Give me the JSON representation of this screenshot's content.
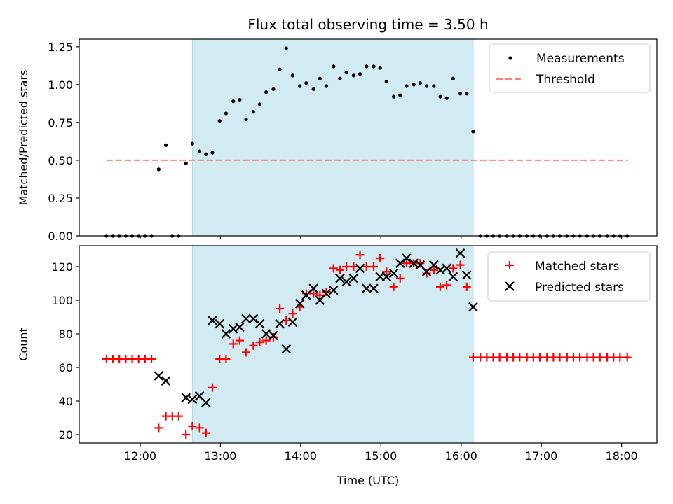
{
  "chart_data": {
    "type": "scatter",
    "title": "Flux total observing time = 3.50 h",
    "xlabel": "Time (UTC)",
    "x_ticks": [
      "12:00",
      "13:00",
      "14:00",
      "15:00",
      "16:00",
      "17:00",
      "18:00"
    ],
    "x_tick_hours": [
      12,
      13,
      14,
      15,
      16,
      17,
      18
    ],
    "xlim_hours": [
      11.24,
      18.44
    ],
    "observing_window_hours": [
      12.65,
      16.15
    ],
    "shade_color": "#add8e6",
    "panels": [
      {
        "ylabel": "Matched/Predicted stars",
        "ylim": [
          0,
          1.3
        ],
        "y_ticks": [
          0.0,
          0.25,
          0.5,
          0.75,
          1.0,
          1.25
        ],
        "y_tick_labels": [
          "0.00",
          "0.25",
          "0.50",
          "0.75",
          "1.00",
          "1.25"
        ],
        "legend": {
          "position": "top-right",
          "entries": [
            "Measurements",
            "Threshold"
          ]
        },
        "threshold": {
          "name": "Threshold",
          "y": 0.5,
          "x_range": [
            11.58,
            18.08
          ],
          "color": "#ff7f7f"
        },
        "series": [
          {
            "name": "Measurements",
            "marker": "dot",
            "color": "#000000",
            "points": [
              [
                11.58,
                0
              ],
              [
                11.66,
                0
              ],
              [
                11.74,
                0
              ],
              [
                11.82,
                0
              ],
              [
                11.9,
                0
              ],
              [
                11.98,
                0
              ],
              [
                12.06,
                0
              ],
              [
                12.14,
                0
              ],
              [
                12.23,
                0.44
              ],
              [
                12.32,
                0.6
              ],
              [
                12.4,
                0
              ],
              [
                12.48,
                0
              ],
              [
                12.57,
                0.48
              ],
              [
                12.65,
                0.61
              ],
              [
                12.74,
                0.56
              ],
              [
                12.82,
                0.54
              ],
              [
                12.9,
                0.55
              ],
              [
                12.99,
                0.76
              ],
              [
                13.07,
                0.81
              ],
              [
                13.16,
                0.89
              ],
              [
                13.24,
                0.9
              ],
              [
                13.32,
                0.77
              ],
              [
                13.41,
                0.82
              ],
              [
                13.49,
                0.87
              ],
              [
                13.57,
                0.95
              ],
              [
                13.66,
                0.97
              ],
              [
                13.74,
                1.1
              ],
              [
                13.82,
                1.24
              ],
              [
                13.9,
                1.06
              ],
              [
                13.99,
                0.99
              ],
              [
                14.07,
                1.01
              ],
              [
                14.16,
                0.97
              ],
              [
                14.24,
                1.04
              ],
              [
                14.32,
                0.99
              ],
              [
                14.41,
                1.12
              ],
              [
                14.49,
                1.04
              ],
              [
                14.57,
                1.08
              ],
              [
                14.66,
                1.06
              ],
              [
                14.74,
                1.07
              ],
              [
                14.82,
                1.12
              ],
              [
                14.91,
                1.12
              ],
              [
                14.99,
                1.11
              ],
              [
                15.07,
                1.02
              ],
              [
                15.16,
                0.92
              ],
              [
                15.24,
                0.93
              ],
              [
                15.32,
                0.99
              ],
              [
                15.41,
                1.0
              ],
              [
                15.49,
                1.01
              ],
              [
                15.57,
                0.99
              ],
              [
                15.66,
                0.99
              ],
              [
                15.74,
                0.92
              ],
              [
                15.82,
                0.91
              ],
              [
                15.9,
                1.04
              ],
              [
                15.99,
                0.94
              ],
              [
                16.07,
                0.94
              ],
              [
                16.15,
                0.69
              ],
              [
                16.24,
                0
              ],
              [
                16.32,
                0
              ],
              [
                16.4,
                0
              ],
              [
                16.48,
                0
              ],
              [
                16.57,
                0
              ],
              [
                16.65,
                0
              ],
              [
                16.73,
                0
              ],
              [
                16.82,
                0
              ],
              [
                16.9,
                0
              ],
              [
                16.98,
                0
              ],
              [
                17.07,
                0
              ],
              [
                17.15,
                0
              ],
              [
                17.23,
                0
              ],
              [
                17.32,
                0
              ],
              [
                17.4,
                0
              ],
              [
                17.48,
                0
              ],
              [
                17.57,
                0
              ],
              [
                17.65,
                0
              ],
              [
                17.73,
                0
              ],
              [
                17.82,
                0
              ],
              [
                17.9,
                0
              ],
              [
                17.98,
                0
              ],
              [
                18.07,
                0
              ]
            ]
          }
        ]
      },
      {
        "ylabel": "Count",
        "ylim": [
          15,
          132.5
        ],
        "y_ticks": [
          20,
          40,
          60,
          80,
          100,
          120
        ],
        "y_tick_labels": [
          "20",
          "40",
          "60",
          "80",
          "100",
          "120"
        ],
        "legend": {
          "position": "top-right",
          "entries": [
            "Matched stars",
            "Predicted stars"
          ]
        },
        "series": [
          {
            "name": "Matched stars",
            "marker": "plus",
            "color": "#ff0000",
            "points": [
              [
                11.58,
                65
              ],
              [
                11.66,
                65
              ],
              [
                11.74,
                65
              ],
              [
                11.82,
                65
              ],
              [
                11.9,
                65
              ],
              [
                11.98,
                65
              ],
              [
                12.06,
                65
              ],
              [
                12.14,
                65
              ],
              [
                12.23,
                24
              ],
              [
                12.32,
                31
              ],
              [
                12.4,
                31
              ],
              [
                12.48,
                31
              ],
              [
                12.57,
                20
              ],
              [
                12.65,
                25
              ],
              [
                12.74,
                24
              ],
              [
                12.82,
                21
              ],
              [
                12.9,
                48
              ],
              [
                12.99,
                65
              ],
              [
                13.07,
                65
              ],
              [
                13.16,
                74
              ],
              [
                13.24,
                76
              ],
              [
                13.32,
                69
              ],
              [
                13.41,
                73
              ],
              [
                13.49,
                75
              ],
              [
                13.57,
                76
              ],
              [
                13.66,
                78
              ],
              [
                13.74,
                95
              ],
              [
                13.82,
                88
              ],
              [
                13.9,
                92
              ],
              [
                13.99,
                96
              ],
              [
                14.07,
                104
              ],
              [
                14.16,
                104
              ],
              [
                14.24,
                103
              ],
              [
                14.32,
                105
              ],
              [
                14.41,
                119
              ],
              [
                14.49,
                118
              ],
              [
                14.57,
                120
              ],
              [
                14.66,
                120
              ],
              [
                14.74,
                127
              ],
              [
                14.82,
                120
              ],
              [
                14.91,
                120
              ],
              [
                14.99,
                125
              ],
              [
                15.07,
                117
              ],
              [
                15.16,
                108
              ],
              [
                15.24,
                113
              ],
              [
                15.32,
                122
              ],
              [
                15.41,
                122
              ],
              [
                15.49,
                122
              ],
              [
                15.57,
                116
              ],
              [
                15.66,
                118
              ],
              [
                15.74,
                108
              ],
              [
                15.82,
                109
              ],
              [
                15.9,
                119
              ],
              [
                15.99,
                121
              ],
              [
                16.07,
                108
              ],
              [
                16.15,
                66
              ],
              [
                16.24,
                66
              ],
              [
                16.32,
                66
              ],
              [
                16.4,
                66
              ],
              [
                16.48,
                66
              ],
              [
                16.57,
                66
              ],
              [
                16.65,
                66
              ],
              [
                16.73,
                66
              ],
              [
                16.82,
                66
              ],
              [
                16.9,
                66
              ],
              [
                16.98,
                66
              ],
              [
                17.07,
                66
              ],
              [
                17.15,
                66
              ],
              [
                17.23,
                66
              ],
              [
                17.32,
                66
              ],
              [
                17.4,
                66
              ],
              [
                17.48,
                66
              ],
              [
                17.57,
                66
              ],
              [
                17.65,
                66
              ],
              [
                17.73,
                66
              ],
              [
                17.82,
                66
              ],
              [
                17.9,
                66
              ],
              [
                17.98,
                66
              ],
              [
                18.07,
                66
              ]
            ]
          },
          {
            "name": "Predicted stars",
            "marker": "x",
            "color": "#000000",
            "points": [
              [
                12.23,
                55
              ],
              [
                12.32,
                52
              ],
              [
                12.57,
                42
              ],
              [
                12.65,
                41
              ],
              [
                12.74,
                43
              ],
              [
                12.82,
                39
              ],
              [
                12.9,
                88
              ],
              [
                12.99,
                86
              ],
              [
                13.07,
                80
              ],
              [
                13.16,
                83
              ],
              [
                13.24,
                84
              ],
              [
                13.32,
                89
              ],
              [
                13.41,
                89
              ],
              [
                13.49,
                86
              ],
              [
                13.57,
                80
              ],
              [
                13.66,
                79
              ],
              [
                13.74,
                86
              ],
              [
                13.82,
                71
              ],
              [
                13.9,
                87
              ],
              [
                13.99,
                98
              ],
              [
                14.07,
                103
              ],
              [
                14.16,
                107
              ],
              [
                14.24,
                100
              ],
              [
                14.32,
                104
              ],
              [
                14.41,
                106
              ],
              [
                14.49,
                113
              ],
              [
                14.57,
                111
              ],
              [
                14.66,
                113
              ],
              [
                14.74,
                119
              ],
              [
                14.82,
                107
              ],
              [
                14.91,
                107
              ],
              [
                14.99,
                114
              ],
              [
                15.07,
                114
              ],
              [
                15.16,
                116
              ],
              [
                15.24,
                122
              ],
              [
                15.32,
                125
              ],
              [
                15.41,
                122
              ],
              [
                15.49,
                121
              ],
              [
                15.57,
                117
              ],
              [
                15.66,
                121
              ],
              [
                15.74,
                118
              ],
              [
                15.82,
                119
              ],
              [
                15.9,
                114
              ],
              [
                15.99,
                128
              ],
              [
                16.07,
                115
              ],
              [
                16.15,
                96
              ]
            ]
          }
        ]
      }
    ]
  }
}
